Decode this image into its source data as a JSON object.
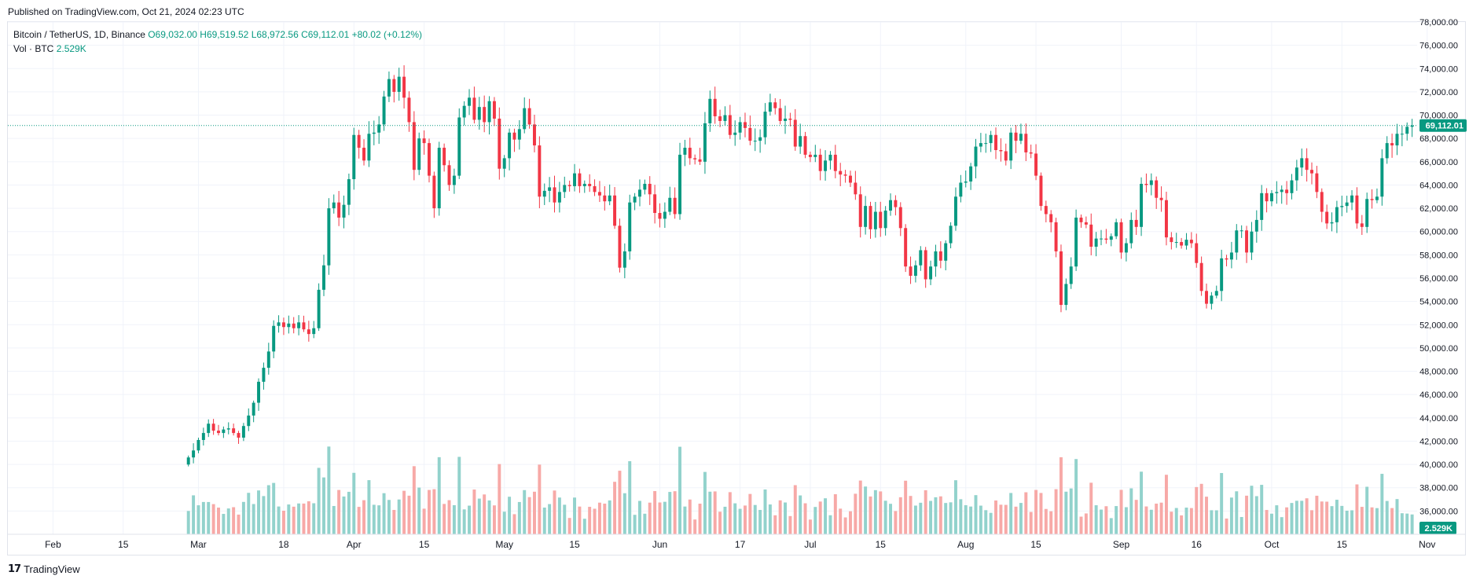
{
  "header": {
    "published": "Published on TradingView.com, Oct 21, 2024 02:23 UTC"
  },
  "legend": {
    "symbol": "Bitcoin / TetherUS, 1D, Binance",
    "open": "O69,032.00",
    "high": "H69,519.52",
    "low": "L68,972.56",
    "close": "C69,112.01",
    "change": "+80.02 (+0.12%)",
    "volume_label": "Vol · BTC",
    "volume_value": "2.529K"
  },
  "footer": {
    "brand": "TradingView",
    "logo_text": "17"
  },
  "colors": {
    "up": "#089981",
    "down": "#f23645",
    "vol_up": "#92d2cc",
    "vol_down": "#f7a9a7",
    "price_line": "#089981",
    "grid": "#f0f3fa"
  },
  "chart_data": {
    "type": "candlestick",
    "symbol": "BTCUSDT",
    "interval": "1D",
    "y_axis": {
      "ylim": [
        34000,
        78000
      ],
      "ticks": [
        "36,000.00",
        "38,000.00",
        "40,000.00",
        "42,000.00",
        "44,000.00",
        "46,000.00",
        "48,000.00",
        "50,000.00",
        "52,000.00",
        "54,000.00",
        "56,000.00",
        "58,000.00",
        "60,000.00",
        "62,000.00",
        "64,000.00",
        "66,000.00",
        "68,000.00",
        "70,000.00",
        "72,000.00",
        "74,000.00",
        "76,000.00",
        "78,000.00"
      ],
      "tick_values": [
        36000,
        38000,
        40000,
        42000,
        44000,
        46000,
        48000,
        50000,
        52000,
        54000,
        56000,
        58000,
        60000,
        62000,
        64000,
        66000,
        68000,
        70000,
        72000,
        74000,
        76000,
        78000
      ]
    },
    "x_axis": {
      "labels": [
        {
          "text": "Feb",
          "day": 0
        },
        {
          "text": "15",
          "day": 14
        },
        {
          "text": "Mar",
          "day": 29
        },
        {
          "text": "18",
          "day": 46
        },
        {
          "text": "Apr",
          "day": 60
        },
        {
          "text": "15",
          "day": 74
        },
        {
          "text": "May",
          "day": 90
        },
        {
          "text": "15",
          "day": 104
        },
        {
          "text": "Jun",
          "day": 121
        },
        {
          "text": "17",
          "day": 137
        },
        {
          "text": "Jul",
          "day": 151
        },
        {
          "text": "15",
          "day": 165
        },
        {
          "text": "Aug",
          "day": 182
        },
        {
          "text": "15",
          "day": 196
        },
        {
          "text": "Sep",
          "day": 213
        },
        {
          "text": "16",
          "day": 228
        },
        {
          "text": "Oct",
          "day": 243
        },
        {
          "text": "15",
          "day": 257
        },
        {
          "text": "Nov",
          "day": 274
        }
      ],
      "start_day": -9,
      "end_day": 272
    },
    "last_price": 69112.01,
    "last_price_label": "69,112.01",
    "last_volume_label": "2.529K",
    "closes": [
      40600,
      41200,
      42100,
      42700,
      43500,
      42900,
      42700,
      43000,
      43100,
      42700,
      42300,
      43300,
      44200,
      45300,
      47100,
      48300,
      49700,
      51900,
      52200,
      51800,
      52100,
      51700,
      52200,
      51600,
      51200,
      51700,
      55000,
      57100,
      62000,
      62500,
      61200,
      62300,
      64500,
      68300,
      67200,
      66100,
      68400,
      68500,
      69200,
      71600,
      73100,
      72000,
      73300,
      71500,
      69400,
      65300,
      68000,
      67600,
      64800,
      62000,
      67200,
      65700,
      64000,
      64800,
      69800,
      70800,
      71500,
      69600,
      70700,
      69400,
      71200,
      69700,
      65400,
      66300,
      68500,
      67900,
      68800,
      70600,
      69200,
      67400,
      63000,
      63500,
      63800,
      62500,
      63400,
      64000,
      63900,
      65000,
      63900,
      64100,
      63900,
      63400,
      63100,
      62600,
      63100,
      60500,
      56900,
      58300,
      62500,
      63000,
      63600,
      64100,
      63200,
      61600,
      61100,
      61700,
      62900,
      61500,
      66600,
      67200,
      66300,
      66200,
      66000,
      69300,
      71400,
      69900,
      69500,
      70000,
      68300,
      68500,
      69400,
      68900,
      67800,
      67800,
      68100,
      70300,
      71100,
      70600,
      69500,
      69700,
      69600,
      67300,
      68200,
      66600,
      66400,
      66600,
      65200,
      66100,
      66600,
      65200,
      64900,
      64800,
      64200,
      63200,
      60400,
      62200,
      60200,
      61700,
      60300,
      61800,
      62700,
      62100,
      60300,
      57000,
      56200,
      57100,
      58400,
      55900,
      57000,
      58300,
      57500,
      59000,
      60500,
      63000,
      64200,
      64300,
      65600,
      67300,
      67600,
      67600,
      68300,
      67000,
      66900,
      66100,
      68500,
      67800,
      68400,
      66800,
      66700,
      64800,
      62200,
      61500,
      60800,
      58300,
      53700,
      55500,
      57000,
      61200,
      60800,
      60600,
      58700,
      59400,
      59400,
      59300,
      59600,
      60800,
      58200,
      59000,
      61000,
      60400,
      64100,
      64000,
      64400,
      62900,
      62700,
      59500,
      59100,
      59100,
      58800,
      59300,
      59000,
      57300,
      54900,
      53800,
      54500,
      54900,
      57700,
      57600,
      58200,
      60100,
      60100,
      58200,
      60000,
      61000,
      63300,
      62600,
      63300,
      63400,
      63600,
      63300,
      64400,
      65500,
      66300,
      65300,
      65000,
      63400,
      61700,
      60700,
      60800,
      62100,
      62200,
      62500,
      63100,
      60700,
      60400,
      62800,
      62700,
      63000,
      66300,
      67600,
      67400,
      68400,
      68400,
      69000,
      69112
    ]
  }
}
